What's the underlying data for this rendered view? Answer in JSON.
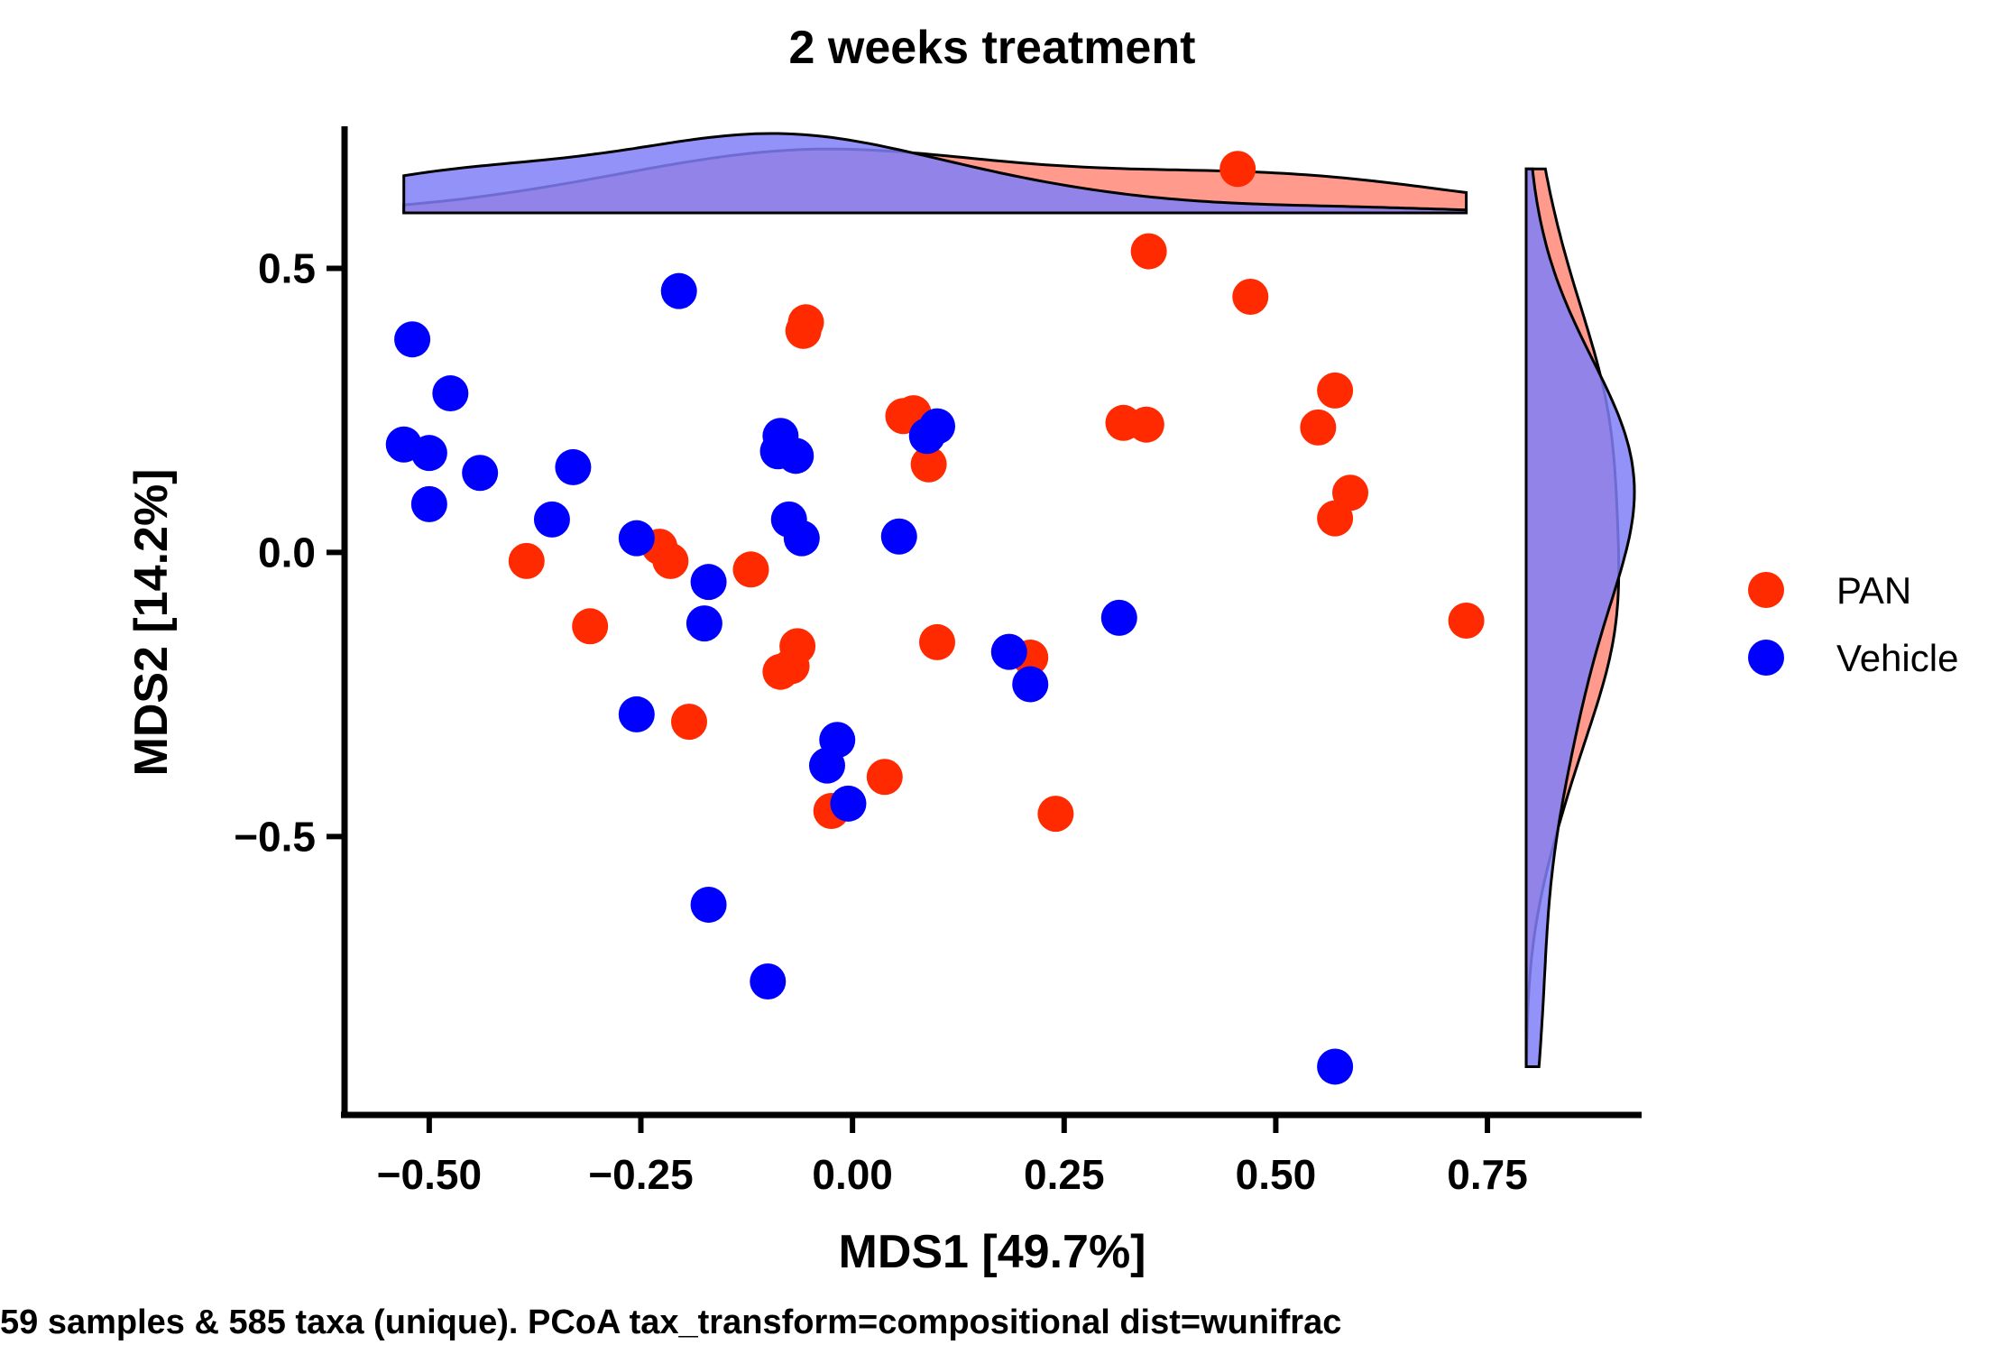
{
  "chart_data": {
    "type": "scatter",
    "title": "2 weeks treatment",
    "xlabel": "MDS1 [49.7%]",
    "ylabel": "MDS2 [14.2%]",
    "caption": "59 samples & 585 taxa (unique). PCoA tax_transform=compositional dist=wunifrac",
    "xlim": [
      -0.6,
      0.93
    ],
    "ylim": [
      -0.99,
      0.75
    ],
    "xticks": [
      -0.5,
      -0.25,
      0.0,
      0.25,
      0.5,
      0.75
    ],
    "xtick_labels": [
      "−0.50",
      "−0.25",
      "0.00",
      "0.25",
      "0.50",
      "0.75"
    ],
    "yticks": [
      0.5,
      0.0,
      -0.5
    ],
    "ytick_labels": [
      "0.5",
      "0.0",
      "−0.5"
    ],
    "legend_position": "right",
    "marginal_density": {
      "top": true,
      "right": true
    },
    "series": [
      {
        "name": "PAN",
        "color": "#ff2a00",
        "density_color": "#ff8878",
        "points": [
          [
            0.455,
            0.675
          ],
          [
            0.35,
            0.53
          ],
          [
            0.47,
            0.45
          ],
          [
            -0.055,
            0.405
          ],
          [
            -0.058,
            0.39
          ],
          [
            0.06,
            0.24
          ],
          [
            0.072,
            0.245
          ],
          [
            0.32,
            0.228
          ],
          [
            0.347,
            0.225
          ],
          [
            0.55,
            0.22
          ],
          [
            0.57,
            0.285
          ],
          [
            0.09,
            0.155
          ],
          [
            0.588,
            0.105
          ],
          [
            0.57,
            0.06
          ],
          [
            -0.228,
            0.01
          ],
          [
            -0.215,
            -0.015
          ],
          [
            -0.385,
            -0.015
          ],
          [
            -0.12,
            -0.03
          ],
          [
            -0.31,
            -0.13
          ],
          [
            -0.065,
            -0.165
          ],
          [
            -0.072,
            -0.2
          ],
          [
            -0.085,
            -0.21
          ],
          [
            0.1,
            -0.158
          ],
          [
            0.21,
            -0.185
          ],
          [
            -0.193,
            -0.298
          ],
          [
            0.038,
            -0.395
          ],
          [
            -0.025,
            -0.455
          ],
          [
            0.24,
            -0.46
          ],
          [
            0.725,
            -0.12
          ]
        ]
      },
      {
        "name": "Vehicle",
        "color": "#0000ff",
        "density_color": "#7f7ff8",
        "points": [
          [
            -0.52,
            0.375
          ],
          [
            -0.475,
            0.28
          ],
          [
            -0.53,
            0.19
          ],
          [
            -0.5,
            0.175
          ],
          [
            -0.44,
            0.14
          ],
          [
            -0.5,
            0.085
          ],
          [
            -0.33,
            0.15
          ],
          [
            -0.355,
            0.058
          ],
          [
            -0.205,
            0.46
          ],
          [
            -0.255,
            0.025
          ],
          [
            -0.085,
            0.205
          ],
          [
            -0.088,
            0.178
          ],
          [
            -0.067,
            0.17
          ],
          [
            -0.075,
            0.058
          ],
          [
            -0.06,
            0.025
          ],
          [
            0.055,
            0.028
          ],
          [
            0.1,
            0.222
          ],
          [
            0.088,
            0.205
          ],
          [
            -0.17,
            -0.052
          ],
          [
            -0.175,
            -0.125
          ],
          [
            -0.255,
            -0.285
          ],
          [
            0.185,
            -0.175
          ],
          [
            0.21,
            -0.232
          ],
          [
            0.315,
            -0.115
          ],
          [
            -0.018,
            -0.33
          ],
          [
            -0.03,
            -0.375
          ],
          [
            -0.005,
            -0.442
          ],
          [
            -0.17,
            -0.62
          ],
          [
            -0.1,
            -0.755
          ],
          [
            0.57,
            -0.905
          ]
        ]
      }
    ]
  }
}
